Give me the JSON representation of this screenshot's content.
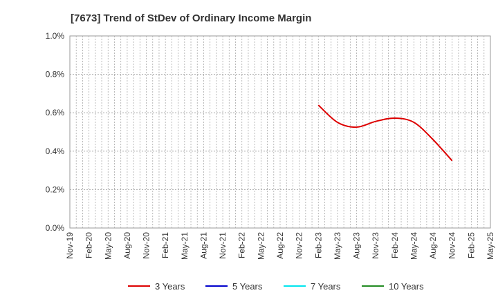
{
  "chart_data": {
    "type": "line",
    "title": "[7673]  Trend of StDev of Ordinary Income Margin",
    "xlabel": "",
    "ylabel": "",
    "ylim": [
      0,
      1.0
    ],
    "y_ticks": [
      "0.0%",
      "0.2%",
      "0.4%",
      "0.6%",
      "0.8%",
      "1.0%"
    ],
    "x_ticks": [
      "Nov-19",
      "Feb-20",
      "May-20",
      "Aug-20",
      "Nov-20",
      "Feb-21",
      "May-21",
      "Aug-21",
      "Nov-21",
      "Feb-22",
      "May-22",
      "Aug-22",
      "Nov-22",
      "Feb-23",
      "May-23",
      "Aug-23",
      "Nov-23",
      "Feb-24",
      "May-24",
      "Aug-24",
      "Nov-24",
      "Feb-25",
      "May-25"
    ],
    "grid": true,
    "legend_position": "bottom",
    "series": [
      {
        "name": "3 Years",
        "color": "#dd0000",
        "points": [
          {
            "x": "Feb-23",
            "y": 0.64
          },
          {
            "x": "May-23",
            "y": 0.55
          },
          {
            "x": "Aug-23",
            "y": 0.525
          },
          {
            "x": "Nov-23",
            "y": 0.555
          },
          {
            "x": "Feb-24",
            "y": 0.572
          },
          {
            "x": "May-24",
            "y": 0.55
          },
          {
            "x": "Aug-24",
            "y": 0.46
          },
          {
            "x": "Nov-24",
            "y": 0.35
          }
        ]
      },
      {
        "name": "5 Years",
        "color": "#0000cc",
        "points": []
      },
      {
        "name": "7 Years",
        "color": "#00e5ee",
        "points": []
      },
      {
        "name": "10 Years",
        "color": "#228b22",
        "points": []
      }
    ]
  }
}
